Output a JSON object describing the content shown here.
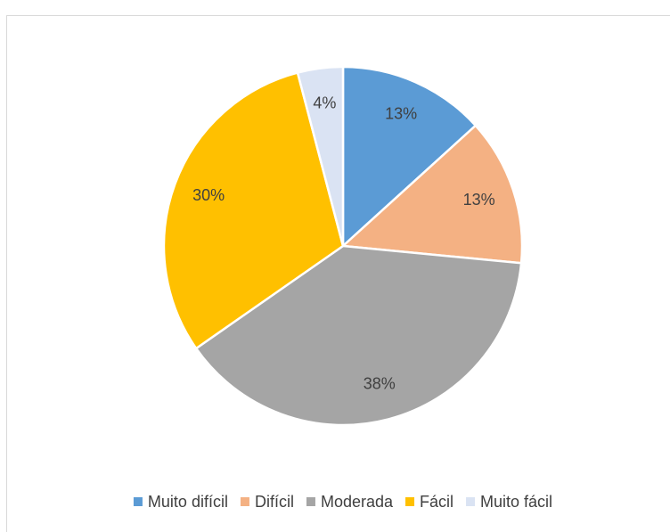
{
  "chart_data": {
    "type": "pie",
    "categories": [
      "Muito difícil",
      "Difícil",
      "Moderada",
      "Fácil",
      "Muito fácil"
    ],
    "values": [
      13,
      13,
      38,
      30,
      4
    ],
    "value_labels": [
      "13%",
      "13%",
      "38%",
      "30%",
      "4%"
    ],
    "colors": [
      "#5b9bd5",
      "#f4b183",
      "#a5a5a5",
      "#ffc000",
      "#dae3f3"
    ],
    "legend": "bottom"
  }
}
